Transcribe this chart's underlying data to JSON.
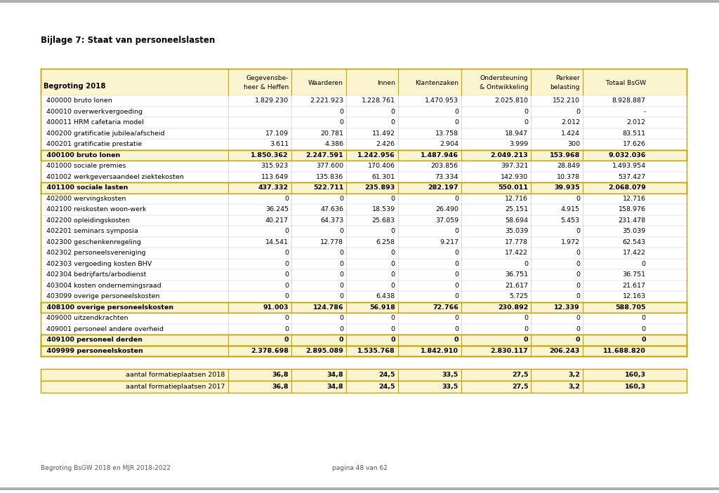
{
  "title": "Bijlage 7: Staat van personeelslasten",
  "page_footer_left": "Begroting BsGW 2018 en MJR 2018-2022",
  "page_footer_right": "pagina 48 van 62",
  "header_row": [
    "Begroting 2018",
    "Gegevensbe-\nheer & Heffen",
    "Waarderen",
    "Innen",
    "Klantenzaken",
    "Ondersteuning\n& Ontwikkeling",
    "Parkeer\nbelasting",
    "Totaal BsGW"
  ],
  "rows": [
    {
      "code": "400000",
      "label": "bruto lonen",
      "values": [
        "1.829.230",
        "2.221.923",
        "1.228.761",
        "1.470.953",
        "2.025.810",
        "152.210",
        "8.928.887"
      ],
      "bold": false,
      "highlight": false
    },
    {
      "code": "400010",
      "label": "overwerkvergoeding",
      "values": [
        "",
        "0",
        "0",
        "0",
        "0",
        "0",
        "-"
      ],
      "bold": false,
      "highlight": false
    },
    {
      "code": "400011",
      "label": "HRM cafetaria model",
      "values": [
        "",
        "0",
        "0",
        "0",
        "0",
        "2.012",
        "2.012"
      ],
      "bold": false,
      "highlight": false
    },
    {
      "code": "400200",
      "label": "gratificatie jubilea/afscheid",
      "values": [
        "17.109",
        "20.781",
        "11.492",
        "13.758",
        "18.947",
        "1.424",
        "83.511"
      ],
      "bold": false,
      "highlight": false
    },
    {
      "code": "400201",
      "label": "gratificatie prestatie",
      "values": [
        "3.611",
        "4.386",
        "2.426",
        "2.904",
        "3.999",
        "300",
        "17.626"
      ],
      "bold": false,
      "highlight": false
    },
    {
      "code": "400100",
      "label": "bruto lonen",
      "values": [
        "1.850.362",
        "2.247.591",
        "1.242.956",
        "1.487.946",
        "2.049.213",
        "153.968",
        "9.032.036"
      ],
      "bold": true,
      "highlight": true
    },
    {
      "code": "401000",
      "label": "sociale premies",
      "values": [
        "315.923",
        "377.600",
        "170.406",
        "203.856",
        "397.321",
        "28.849",
        "1.493.954"
      ],
      "bold": false,
      "highlight": false
    },
    {
      "code": "401002",
      "label": "werkgeversaandeel ziektekosten",
      "values": [
        "113.649",
        "135.836",
        "61.301",
        "73.334",
        "142.930",
        "10.378",
        "537.427"
      ],
      "bold": false,
      "highlight": false
    },
    {
      "code": "401100",
      "label": "sociale lasten",
      "values": [
        "437.332",
        "522.711",
        "235.893",
        "282.197",
        "550.011",
        "39.935",
        "2.068.079"
      ],
      "bold": true,
      "highlight": true
    },
    {
      "code": "402000",
      "label": "wervingskosten",
      "values": [
        "0",
        "0",
        "0",
        "0",
        "12.716",
        "0",
        "12.716"
      ],
      "bold": false,
      "highlight": false
    },
    {
      "code": "402100",
      "label": "reiskosten woon-werk",
      "values": [
        "36.245",
        "47.636",
        "18.539",
        "26.490",
        "25.151",
        "4.915",
        "158.976"
      ],
      "bold": false,
      "highlight": false
    },
    {
      "code": "402200",
      "label": "opleidingskosten",
      "values": [
        "40.217",
        "64.373",
        "25.683",
        "37.059",
        "58.694",
        "5.453",
        "231.478"
      ],
      "bold": false,
      "highlight": false
    },
    {
      "code": "402201",
      "label": "seminars symposia",
      "values": [
        "0",
        "0",
        "0",
        "0",
        "35.039",
        "0",
        "35.039"
      ],
      "bold": false,
      "highlight": false
    },
    {
      "code": "402300",
      "label": "geschenkenregeling",
      "values": [
        "14.541",
        "12.778",
        "6.258",
        "9.217",
        "17.778",
        "1.972",
        "62.543"
      ],
      "bold": false,
      "highlight": false
    },
    {
      "code": "402302",
      "label": "personeelsvereniging",
      "values": [
        "0",
        "0",
        "0",
        "0",
        "17.422",
        "0",
        "17.422"
      ],
      "bold": false,
      "highlight": false
    },
    {
      "code": "402303",
      "label": "vergoeding kosten BHV",
      "values": [
        "0",
        "0",
        "0",
        "0",
        "0",
        "0",
        "0"
      ],
      "bold": false,
      "highlight": false
    },
    {
      "code": "402304",
      "label": "bedrijfarts/arbodienst",
      "values": [
        "0",
        "0",
        "0",
        "0",
        "36.751",
        "0",
        "36.751"
      ],
      "bold": false,
      "highlight": false
    },
    {
      "code": "403004",
      "label": "kosten ondernemingsraad",
      "values": [
        "0",
        "0",
        "0",
        "0",
        "21.617",
        "0",
        "21.617"
      ],
      "bold": false,
      "highlight": false
    },
    {
      "code": "403099",
      "label": "overige personeelskosten",
      "values": [
        "0",
        "0",
        "6.438",
        "0",
        "5.725",
        "0",
        "12.163"
      ],
      "bold": false,
      "highlight": false
    },
    {
      "code": "408100",
      "label": "overige personeelskosten",
      "values": [
        "91.003",
        "124.786",
        "56.918",
        "72.766",
        "230.892",
        "12.339",
        "588.705"
      ],
      "bold": true,
      "highlight": true
    },
    {
      "code": "409000",
      "label": "uitzendkrachten",
      "values": [
        "0",
        "0",
        "0",
        "0",
        "0",
        "0",
        "0"
      ],
      "bold": false,
      "highlight": false
    },
    {
      "code": "409001",
      "label": "personeel andere overheid",
      "values": [
        "0",
        "0",
        "0",
        "0",
        "0",
        "0",
        "0"
      ],
      "bold": false,
      "highlight": false
    },
    {
      "code": "409100",
      "label": "personeel derden",
      "values": [
        "0",
        "0",
        "0",
        "0",
        "0",
        "0",
        "0"
      ],
      "bold": true,
      "highlight": true
    },
    {
      "code": "409999",
      "label": "personeelskosten",
      "values": [
        "2.378.698",
        "2.895.089",
        "1.535.768",
        "1.842.910",
        "2.830.117",
        "206.243",
        "11.688.820"
      ],
      "bold": true,
      "highlight": true
    }
  ],
  "footer_rows": [
    {
      "label": "aantal formatieplaatsen 2018",
      "values": [
        "36,8",
        "34,8",
        "24,5",
        "33,5",
        "27,5",
        "3,2",
        "160,3"
      ]
    },
    {
      "label": "aantal formatieplaatsen 2017",
      "values": [
        "36,8",
        "34,8",
        "24,5",
        "33,5",
        "27,5",
        "3,2",
        "160,3"
      ]
    }
  ],
  "bg_color": "#ffffff",
  "header_bg": "#faf5d0",
  "highlight_bg": "#faf5d0",
  "bold_border_color": "#c8a000",
  "normal_row_bg": "#ffffff",
  "footer_bg": "#faf5d0",
  "text_color": "#000000",
  "grid_color": "#c0c0c0",
  "top_stripe_color": "#b0b0b0",
  "title_fontsize": 8.5,
  "data_fontsize": 6.8,
  "header_fontsize": 6.8,
  "footer_fontsize": 6.8
}
